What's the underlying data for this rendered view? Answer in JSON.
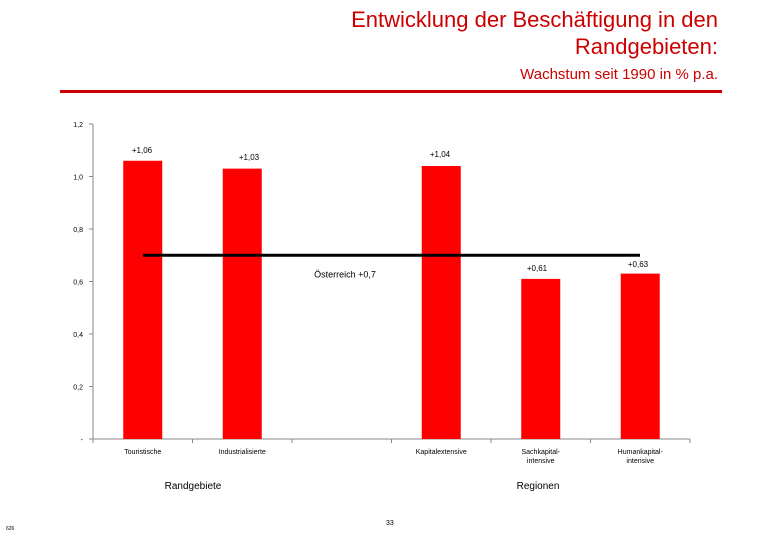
{
  "header": {
    "title_line1": "Entwicklung der Beschäftigung in den",
    "title_line2": "Randgebieten:",
    "subtitle": "Wachstum seit 1990 in % p.a."
  },
  "footer": {
    "code": "626",
    "page_number": "33"
  },
  "chart_data": {
    "type": "bar",
    "categories": [
      "Touristische",
      "Industrialisierte",
      "",
      "Kapitalextensive",
      "Sachkapital-intensive",
      "Humankapital-intensive"
    ],
    "category_lines": [
      [
        "Touristische"
      ],
      [
        "Industrialisierte"
      ],
      [],
      [
        "Kapitalextensive"
      ],
      [
        "Sachkapital-",
        "intensive"
      ],
      [
        "Humankapital-",
        "intensive"
      ]
    ],
    "values": [
      1.06,
      1.03,
      null,
      1.04,
      0.61,
      0.63
    ],
    "data_labels": [
      "+1,06",
      "+1,03",
      "",
      "+1,04",
      "+0,61",
      "+0,63"
    ],
    "ylim": [
      0,
      1.2
    ],
    "yticks": [
      0,
      0.2,
      0.4,
      0.6,
      0.8,
      1.0,
      1.2
    ],
    "ytick_labels": [
      "-",
      "0,2",
      "0,4",
      "0,6",
      "0,8",
      "1,0",
      "1,2"
    ],
    "reference_line": {
      "value": 0.7,
      "label": "Österreich +0,7"
    },
    "group_labels": [
      "Randgebiete",
      "Regionen"
    ],
    "bar_color": "#ff0000",
    "title_color": "#cc0000",
    "grid": false
  }
}
